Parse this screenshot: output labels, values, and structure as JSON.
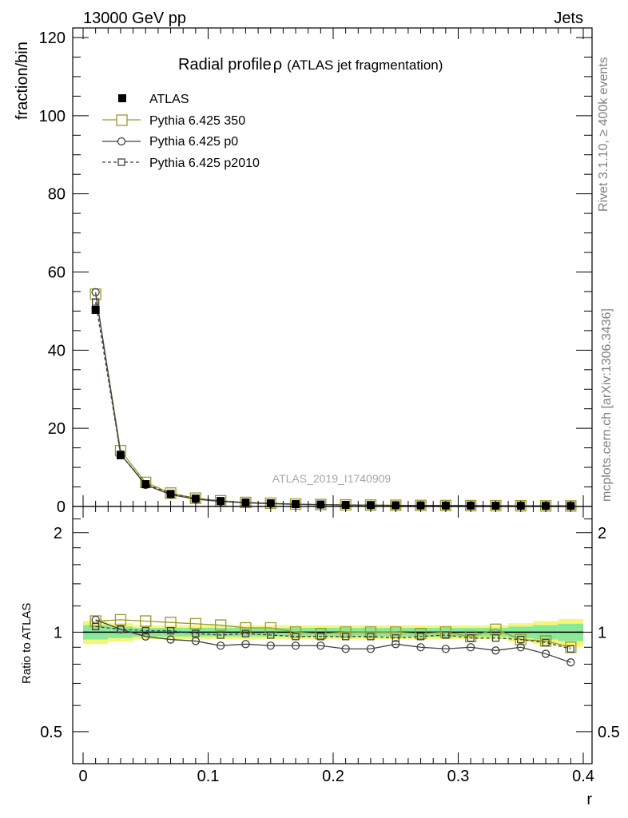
{
  "header": {
    "left": "13000 GeV pp",
    "right": "Jets"
  },
  "side_labels": {
    "rivet": "Rivet 3.1.10, ≥ 400k events",
    "mcplots": "mcplots.cern.ch [arXiv:1306.3436]"
  },
  "chart_data": {
    "type": "line",
    "title": "Radial profile",
    "title_symbol": "ρ",
    "subtitle": "(ATLAS jet fragmentation)",
    "watermark": "ATLAS_2019_I1740909",
    "xlabel": "r",
    "ylabel": "fraction/bin",
    "ratio_ylabel": "Ratio to ATLAS",
    "xlim": [
      0,
      0.4
    ],
    "ylim": [
      0,
      120
    ],
    "ratio_ylim": [
      0.4,
      2.4
    ],
    "ratio_log": true,
    "x_ticks": [
      "0",
      "0.1",
      "0.2",
      "0.3",
      "0.4"
    ],
    "y_ticks": [
      "0",
      "20",
      "40",
      "60",
      "80",
      "100",
      "120"
    ],
    "ratio_ticks": [
      "0.5",
      "1",
      "2"
    ],
    "x": [
      0.01,
      0.03,
      0.05,
      0.07,
      0.09,
      0.11,
      0.13,
      0.15,
      0.17,
      0.19,
      0.21,
      0.23,
      0.25,
      0.27,
      0.29,
      0.31,
      0.33,
      0.35,
      0.37,
      0.39
    ],
    "data": {
      "name": "ATLAS",
      "values": [
        50.3,
        13.1,
        5.7,
        3.2,
        2.0,
        1.4,
        1.0,
        0.8,
        0.6,
        0.5,
        0.4,
        0.35,
        0.3,
        0.27,
        0.24,
        0.22,
        0.2,
        0.18,
        0.16,
        0.15
      ],
      "band_rel": [
        0.05,
        0.04,
        0.03,
        0.03,
        0.03,
        0.03,
        0.03,
        0.03,
        0.03,
        0.03,
        0.03,
        0.03,
        0.03,
        0.03,
        0.03,
        0.03,
        0.03,
        0.04,
        0.05,
        0.06
      ]
    },
    "series": [
      {
        "name": "Pythia 6.425 350",
        "color": "#999926",
        "marker": "square-open-large",
        "dash": "solid",
        "ratio": [
          1.08,
          1.09,
          1.08,
          1.07,
          1.06,
          1.05,
          1.03,
          1.03,
          1.0,
          0.99,
          1.0,
          1.0,
          1.0,
          0.99,
          1.0,
          0.97,
          1.02,
          0.95,
          0.94,
          0.9
        ]
      },
      {
        "name": "Pythia 6.425 p0",
        "color": "#404040",
        "marker": "circle-open",
        "dash": "solid",
        "ratio": [
          1.09,
          1.02,
          0.97,
          0.95,
          0.94,
          0.91,
          0.92,
          0.91,
          0.91,
          0.91,
          0.89,
          0.89,
          0.92,
          0.9,
          0.89,
          0.9,
          0.88,
          0.9,
          0.86,
          0.81
        ]
      },
      {
        "name": "Pythia 6.425 p2010",
        "color": "#404040",
        "marker": "square-open-small",
        "dash": "dashed",
        "ratio": [
          1.04,
          1.02,
          1.01,
          1.01,
          0.99,
          0.98,
          0.99,
          0.98,
          0.97,
          0.97,
          0.97,
          0.97,
          0.96,
          0.97,
          0.98,
          0.96,
          0.96,
          0.95,
          0.93,
          0.89
        ]
      }
    ]
  }
}
